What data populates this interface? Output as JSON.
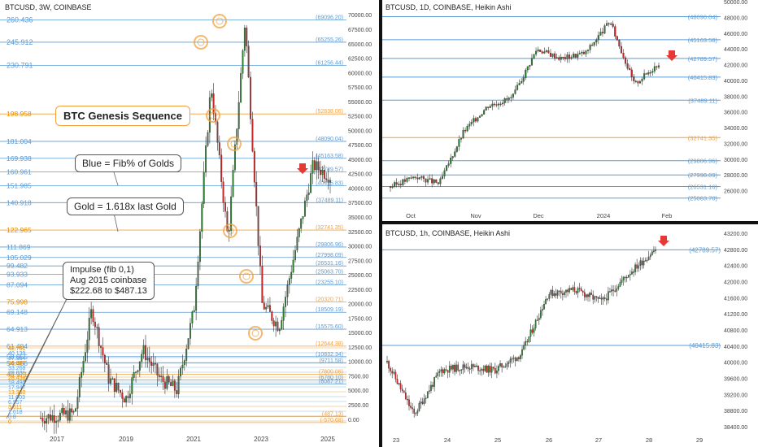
{
  "colors": {
    "up": "#26a69a",
    "down": "#ef5350",
    "fib_blue": "#5b9bd5",
    "gold": "#f2a03d",
    "arrow": "#e53935",
    "candle_up": "#2e7d32",
    "candle_down": "#c62828"
  },
  "left": {
    "header": "BTCUSD, 3W, COINBASE",
    "title_box": "BTC Genesis Sequence",
    "note_blue": "Blue = Fib% of Golds",
    "note_gold": "Gold = 1.618x last Gold",
    "impulse_note": [
      "Impulse (fib 0,1)",
      "Aug 2015 coinbase",
      "$222.68 to $487.13"
    ],
    "x_ticks": [
      "2017",
      "2019",
      "2021",
      "2023",
      "2025"
    ],
    "y_ticks": [
      "70000.00",
      "67500.00",
      "65000.00",
      "62500.00",
      "60000.00",
      "57500.00",
      "55000.00",
      "52500.00",
      "50000.00",
      "47500.00",
      "45000.00",
      "42500.00",
      "40000.00",
      "37500.00",
      "35000.00",
      "32500.00",
      "30000.00",
      "27500.00",
      "25000.00",
      "22500.00",
      "20000.00",
      "17500.00",
      "15000.00",
      "12500.00",
      "10000.00",
      "7500.00",
      "5000.00",
      "2500.00",
      "0.00"
    ],
    "fib_left_labels": [
      {
        "text": "260.436",
        "kind": "blue"
      },
      {
        "text": "245.912",
        "kind": "blue"
      },
      {
        "text": "230.791",
        "kind": "blue"
      },
      {
        "text": "198.958",
        "kind": "gold"
      },
      {
        "text": "181.004",
        "kind": "blue"
      },
      {
        "text": "169.938",
        "kind": "blue"
      },
      {
        "text": "160.961",
        "kind": "blue"
      },
      {
        "text": "151.985",
        "kind": "blue"
      },
      {
        "text": "140.918",
        "kind": "blue"
      },
      {
        "text": "122.965",
        "kind": "gold"
      },
      {
        "text": "111.869",
        "kind": "blue"
      },
      {
        "text": "105.029",
        "kind": "blue"
      },
      {
        "text": "99.482",
        "kind": "blue"
      },
      {
        "text": "93.933",
        "kind": "blue"
      },
      {
        "text": "87.094",
        "kind": "blue"
      },
      {
        "text": "75.998",
        "kind": "gold"
      },
      {
        "text": "69.148",
        "kind": "blue"
      },
      {
        "text": "64.913",
        "kind": "blue"
      },
      {
        "text": "61.484",
        "kind": "blue"
      },
      {
        "text": "58.055",
        "kind": "blue"
      },
      {
        "text": "54.486",
        "kind": "blue"
      },
      {
        "text": "46.971",
        "kind": "gold"
      }
    ],
    "fib_right_labels": [
      {
        "text": "(69096.20)",
        "kind": "blue"
      },
      {
        "text": "(65255.26)",
        "kind": "blue"
      },
      {
        "text": "(61256.44)",
        "kind": "blue"
      },
      {
        "text": "(52838.06)",
        "kind": "gold"
      },
      {
        "text": "(48090.04)",
        "kind": "blue"
      },
      {
        "text": "(45163.58)",
        "kind": "blue"
      },
      {
        "text": "(42789.57)",
        "kind": "blue"
      },
      {
        "text": "(40415.83)",
        "kind": "blue"
      },
      {
        "text": "(37489.11)",
        "kind": "blue"
      },
      {
        "text": "(32741.35)",
        "kind": "gold"
      },
      {
        "text": "(29806.96)",
        "kind": "blue"
      },
      {
        "text": "(27998.09)",
        "kind": "blue"
      },
      {
        "text": "(26531.16)",
        "kind": "blue"
      },
      {
        "text": "(25063.70)",
        "kind": "blue"
      },
      {
        "text": "(23255.10)",
        "kind": "blue"
      },
      {
        "text": "(20320.71)",
        "kind": "gold"
      },
      {
        "text": "(18509.19)",
        "kind": "blue"
      },
      {
        "text": "(15575.60)",
        "kind": "blue"
      },
      {
        "text": "(12644.38)",
        "kind": "gold"
      },
      {
        "text": "(10832.34)",
        "kind": "blue"
      },
      {
        "text": "(9711.58)",
        "kind": "blue"
      },
      {
        "text": "(7800.06)",
        "kind": "gold"
      },
      {
        "text": "(6780.10)",
        "kind": "blue"
      },
      {
        "text": "(6087.21)",
        "kind": "blue"
      },
      {
        "text": "(487.13)",
        "kind": "gold"
      },
      {
        "text": "(-570.68)",
        "kind": "gold"
      }
    ],
    "lower_fib_left": [
      "42.701",
      "40.139",
      "37.984",
      "36.987",
      "33.268",
      "29.031",
      "28.458",
      "18.490",
      "17.947",
      "13.350",
      "11.003",
      "6.957",
      "3.611",
      "1.618",
      "0.8",
      "0"
    ]
  },
  "top_right": {
    "header": "BTCUSD, 1D, COINBASE, Heikin Ashi",
    "x_ticks": [
      "Oct",
      "Nov",
      "Dec",
      "2024",
      "Feb"
    ],
    "y_ticks": [
      "50000.00",
      "48000.00",
      "46000.00",
      "44000.00",
      "42000.00",
      "40000.00",
      "38000.00",
      "36000.00",
      "34000.00",
      "32000.00",
      "30000.00",
      "28000.00",
      "26000.00"
    ],
    "levels": [
      {
        "text": "(48090.04)",
        "value": 48090.04,
        "kind": "blue"
      },
      {
        "text": "(45163.58)",
        "value": 45163.58,
        "kind": "blue"
      },
      {
        "text": "(42789.57)",
        "value": 42789.57,
        "kind": "blue"
      },
      {
        "text": "(40415.83)",
        "value": 40415.83,
        "kind": "blue"
      },
      {
        "text": "(37489.11)",
        "value": 37489.11,
        "kind": "blue"
      },
      {
        "text": "(32741.35)",
        "value": 32741.35,
        "kind": "gold"
      },
      {
        "text": "(29806.96)",
        "value": 29806.96,
        "kind": "blue"
      },
      {
        "text": "(27998.09)",
        "value": 27998.09,
        "kind": "blue"
      },
      {
        "text": "(26531.16)",
        "value": 26531.16,
        "kind": "blue"
      },
      {
        "text": "(25063.70)",
        "value": 25063.7,
        "kind": "blue"
      }
    ]
  },
  "bottom_right": {
    "header": "BTCUSD, 1h, COINBASE, Heikin Ashi",
    "x_ticks": [
      "23",
      "24",
      "25",
      "26",
      "27",
      "28",
      "29"
    ],
    "y_ticks": [
      "43200.00",
      "42800.00",
      "42400.00",
      "42000.00",
      "41600.00",
      "41200.00",
      "40800.00",
      "40400.00",
      "40000.00",
      "39600.00",
      "39200.00",
      "38800.00",
      "38400.00"
    ],
    "levels": [
      {
        "text": "(42789.57)",
        "value": 42789.57,
        "kind": "blue"
      },
      {
        "text": "(40415.83)",
        "value": 40415.83,
        "kind": "blue"
      }
    ]
  },
  "chart_data": [
    {
      "type": "candlestick",
      "title": "BTCUSD, 3W, COINBASE",
      "x_ticks": [
        "2017",
        "2019",
        "2021",
        "2023",
        "2025"
      ],
      "ylim": [
        -2000,
        72000
      ],
      "price_path": [
        {
          "t": "2015",
          "close": 250
        },
        {
          "t": "2016",
          "close": 600
        },
        {
          "t": "2017",
          "close": 1000
        },
        {
          "t": "late 2017",
          "close": 19000
        },
        {
          "t": "2018",
          "close": 7000
        },
        {
          "t": "late 2018",
          "close": 3500
        },
        {
          "t": "mid 2019",
          "close": 12000
        },
        {
          "t": "2020",
          "close": 7000
        },
        {
          "t": "early 2020",
          "close": 5000
        },
        {
          "t": "late 2020",
          "close": 19000
        },
        {
          "t": "early 2021",
          "close": 58000
        },
        {
          "t": "mid 2021",
          "close": 31000
        },
        {
          "t": "Nov 2021",
          "close": 69000
        },
        {
          "t": "mid 2022",
          "close": 20000
        },
        {
          "t": "Nov 2022",
          "close": 16000
        },
        {
          "t": "2023",
          "close": 30000
        },
        {
          "t": "late 2023",
          "close": 44000
        },
        {
          "t": "Jan 2024",
          "close": 42000
        }
      ]
    },
    {
      "type": "candlestick",
      "title": "BTCUSD, 1D, COINBASE, Heikin Ashi",
      "x_ticks": [
        "Oct",
        "Nov",
        "Dec",
        "2024",
        "Feb"
      ],
      "ylim": [
        24000,
        50000
      ],
      "price_path": [
        {
          "t": "Sep 22",
          "close": 26500
        },
        {
          "t": "Oct 1",
          "close": 27800
        },
        {
          "t": "Oct 15",
          "close": 26900
        },
        {
          "t": "Oct 24",
          "close": 33500
        },
        {
          "t": "Nov 10",
          "close": 36800
        },
        {
          "t": "Nov 30",
          "close": 37800
        },
        {
          "t": "Dec 6",
          "close": 44000
        },
        {
          "t": "Dec 20",
          "close": 42800
        },
        {
          "t": "Jan 1",
          "close": 43500
        },
        {
          "t": "Jan 10",
          "close": 47500
        },
        {
          "t": "Jan 23",
          "close": 39500
        },
        {
          "t": "Jan 28",
          "close": 42200
        }
      ]
    },
    {
      "type": "candlestick",
      "title": "BTCUSD, 1h, COINBASE, Heikin Ashi",
      "x_ticks": [
        "23",
        "24",
        "25",
        "26",
        "27",
        "28",
        "29"
      ],
      "ylim": [
        38300,
        43300
      ],
      "price_path": [
        {
          "t": "23",
          "close": 40000
        },
        {
          "t": "23.5",
          "close": 38700
        },
        {
          "t": "24",
          "close": 39800
        },
        {
          "t": "25",
          "close": 39900
        },
        {
          "t": "25.5",
          "close": 39800
        },
        {
          "t": "26",
          "close": 40200
        },
        {
          "t": "26.4",
          "close": 41700
        },
        {
          "t": "27",
          "close": 41800
        },
        {
          "t": "27.4",
          "close": 41500
        },
        {
          "t": "28",
          "close": 42200
        },
        {
          "t": "28.2",
          "close": 42800
        }
      ]
    }
  ]
}
